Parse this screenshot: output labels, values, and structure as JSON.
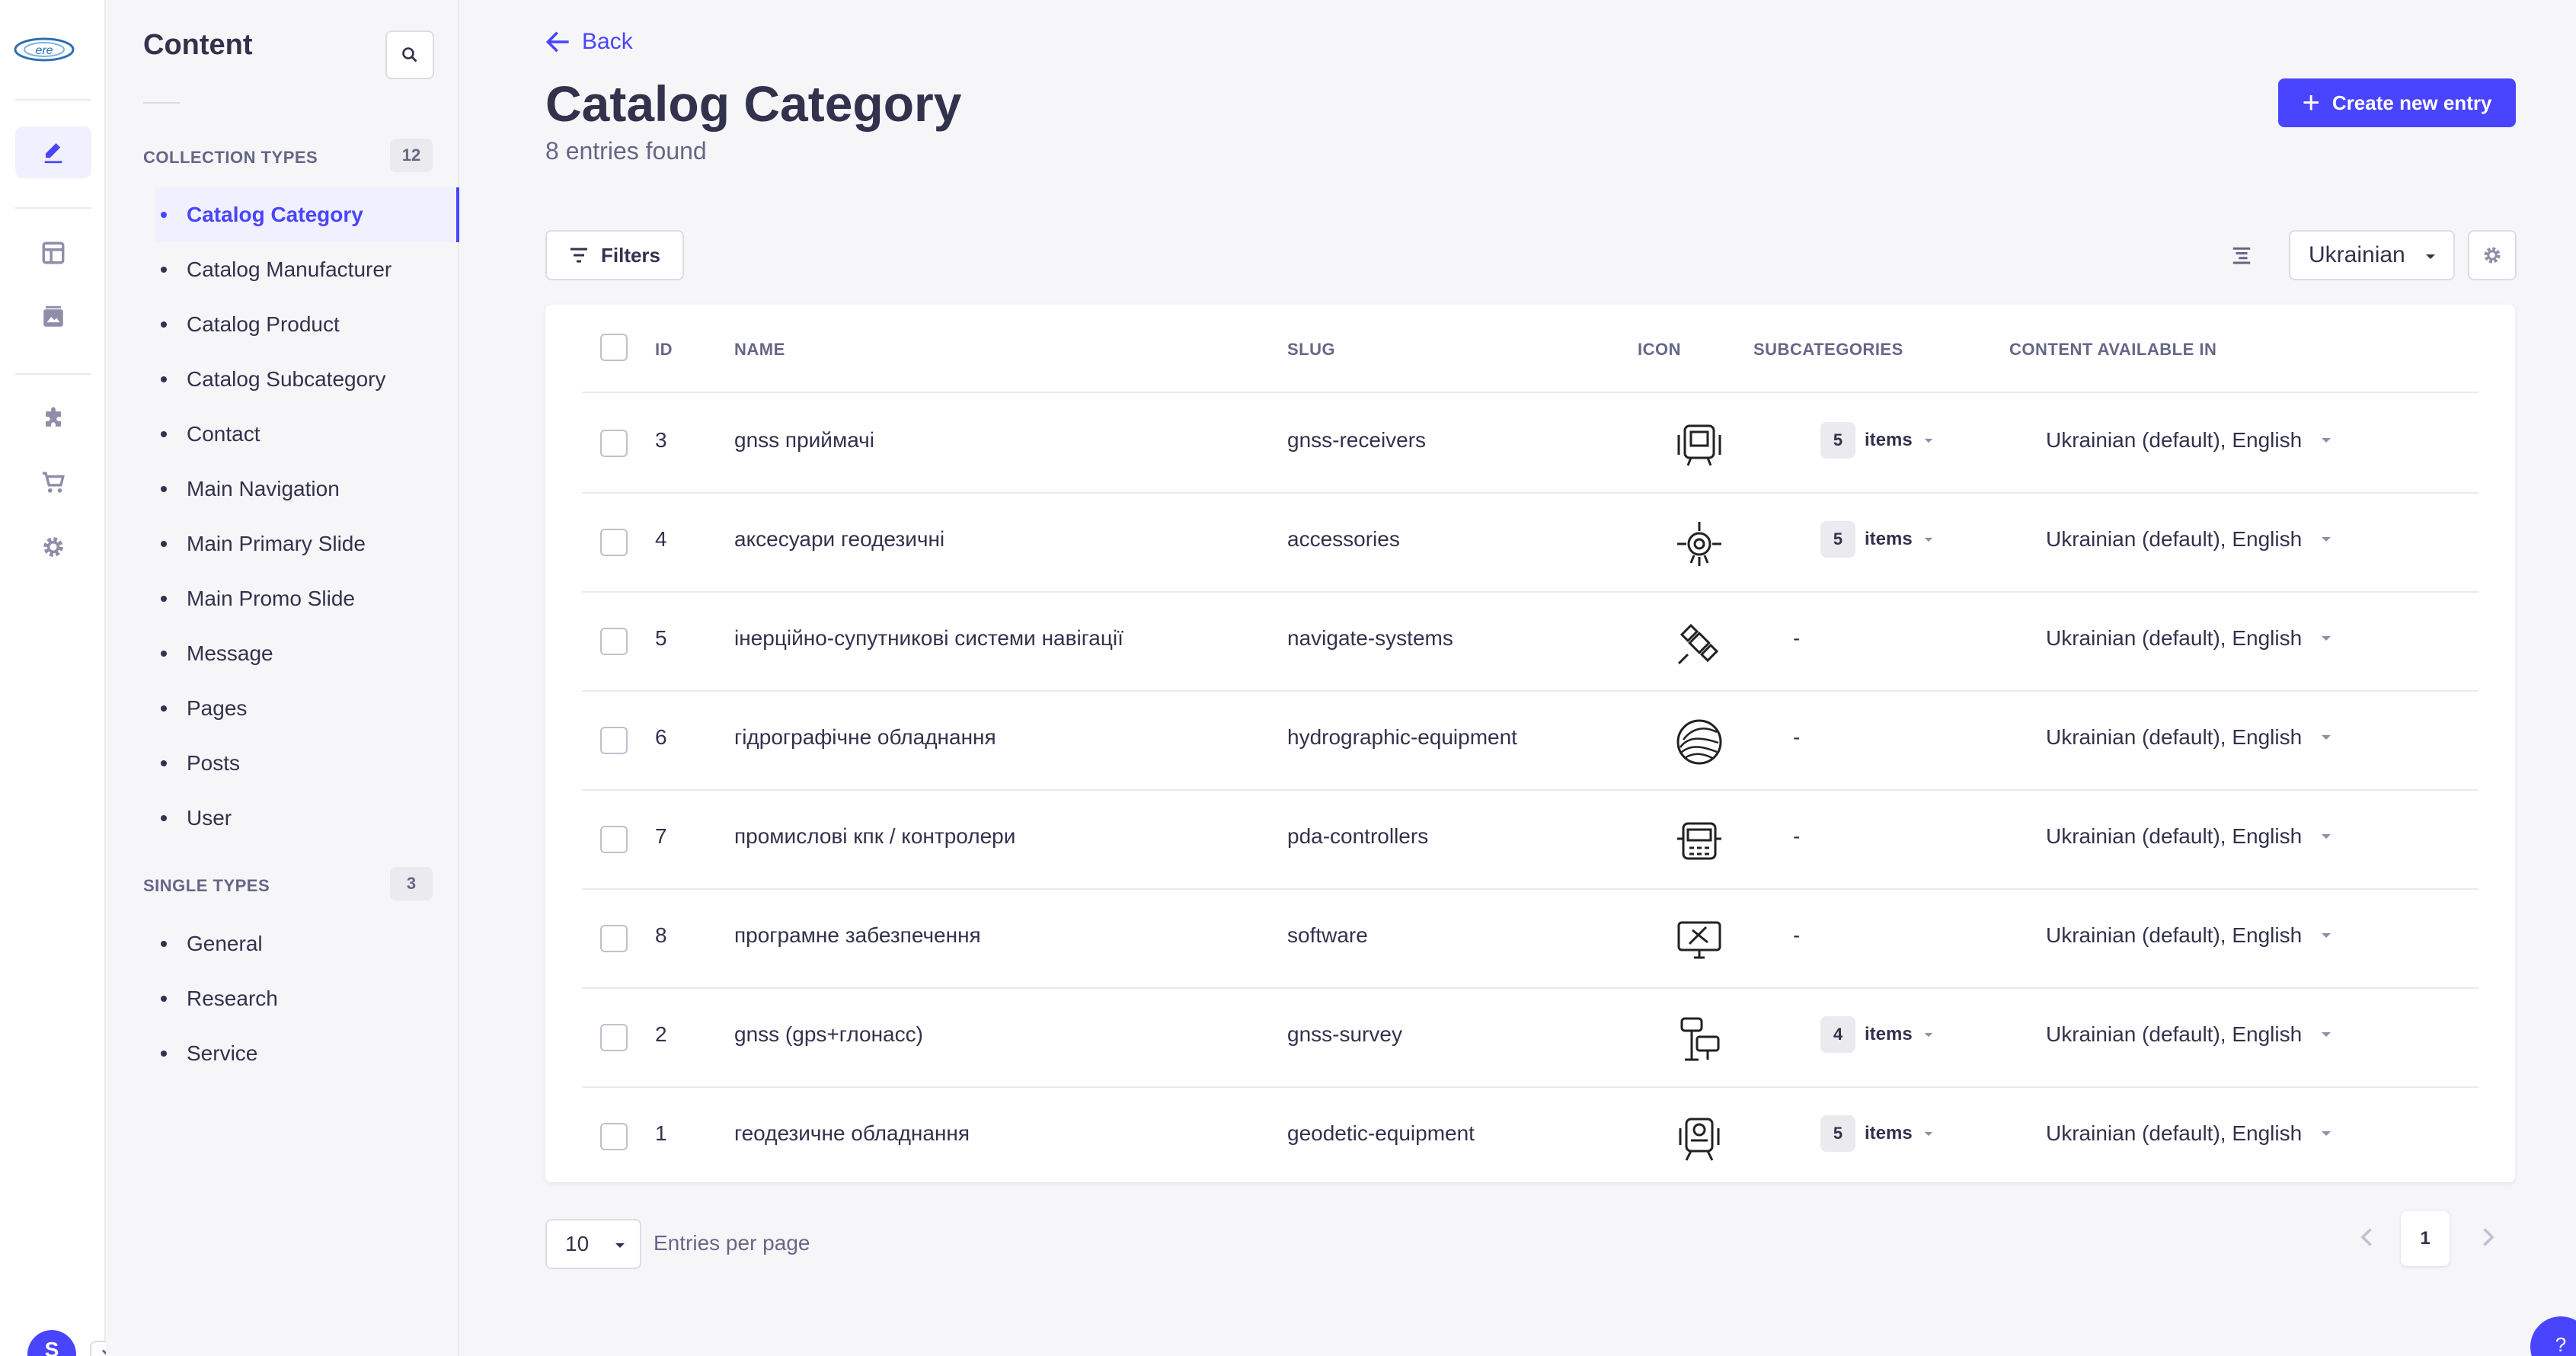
{
  "colors": {
    "primary": "#4945ff",
    "text": "#32324d",
    "muted": "#666687",
    "bg": "#f6f6f9"
  },
  "rail": {
    "items": [
      {
        "name": "content-manager-icon",
        "active": true
      },
      {
        "name": "content-type-builder-icon",
        "active": false
      },
      {
        "name": "media-library-icon",
        "active": false
      },
      {
        "name": "plugins-icon",
        "active": false
      },
      {
        "name": "marketplace-icon",
        "active": false
      },
      {
        "name": "settings-icon",
        "active": false
      }
    ],
    "avatar_initial": "S"
  },
  "subnav": {
    "title": "Content",
    "collection_label": "COLLECTION TYPES",
    "collection_count": "12",
    "collection_items": [
      "Catalog Category",
      "Catalog Manufacturer",
      "Catalog Product",
      "Catalog Subcategory",
      "Contact",
      "Main Navigation",
      "Main Primary Slide",
      "Main Promo Slide",
      "Message",
      "Pages",
      "Posts",
      "User"
    ],
    "single_label": "SINGLE TYPES",
    "single_count": "3",
    "single_items": [
      "General",
      "Research",
      "Service"
    ]
  },
  "header": {
    "back_label": "Back",
    "title": "Catalog Category",
    "subtitle": "8 entries found",
    "create_label": "Create new entry"
  },
  "toolbar": {
    "filters_label": "Filters",
    "locale_value": "Ukrainian"
  },
  "table": {
    "columns": {
      "id": "ID",
      "name": "NAME",
      "slug": "SLUG",
      "icon": "ICON",
      "subcategories": "SUBCATEGORIES",
      "locales": "CONTENT AVAILABLE IN"
    },
    "items_label": "items",
    "dash": "-",
    "rows": [
      {
        "id": "3",
        "name": "gnss приймачі",
        "slug": "gnss-receivers",
        "icon": "gnss-receiver-icon",
        "sub_count": "5",
        "locales": "Ukrainian (default), English"
      },
      {
        "id": "4",
        "name": "аксесуари геодезичні",
        "slug": "accessories",
        "icon": "accessories-icon",
        "sub_count": "5",
        "locales": "Ukrainian (default), English"
      },
      {
        "id": "5",
        "name": "інерційно-супутникові системи навігації",
        "slug": "navigate-systems",
        "icon": "satellite-icon",
        "sub_count": null,
        "locales": "Ukrainian (default), English"
      },
      {
        "id": "6",
        "name": "гідрографічне обладнання",
        "slug": "hydrographic-equipment",
        "icon": "waves-icon",
        "sub_count": null,
        "locales": "Ukrainian (default), English"
      },
      {
        "id": "7",
        "name": "промислові кпк / контролери",
        "slug": "pda-controllers",
        "icon": "controller-icon",
        "sub_count": null,
        "locales": "Ukrainian (default), English"
      },
      {
        "id": "8",
        "name": "програмне забезпечення",
        "slug": "software",
        "icon": "software-monitor-icon",
        "sub_count": null,
        "locales": "Ukrainian (default), English"
      },
      {
        "id": "2",
        "name": "gnss (gps+глонасс)",
        "slug": "gnss-survey",
        "icon": "gnss-survey-icon",
        "sub_count": "4",
        "locales": "Ukrainian (default), English"
      },
      {
        "id": "1",
        "name": "геодезичне обладнання",
        "slug": "geodetic-equipment",
        "icon": "total-station-icon",
        "sub_count": "5",
        "locales": "Ukrainian (default), English"
      }
    ]
  },
  "footer": {
    "per_page_value": "10",
    "per_page_label": "Entries per page",
    "current_page": "1"
  },
  "help_label": "?"
}
